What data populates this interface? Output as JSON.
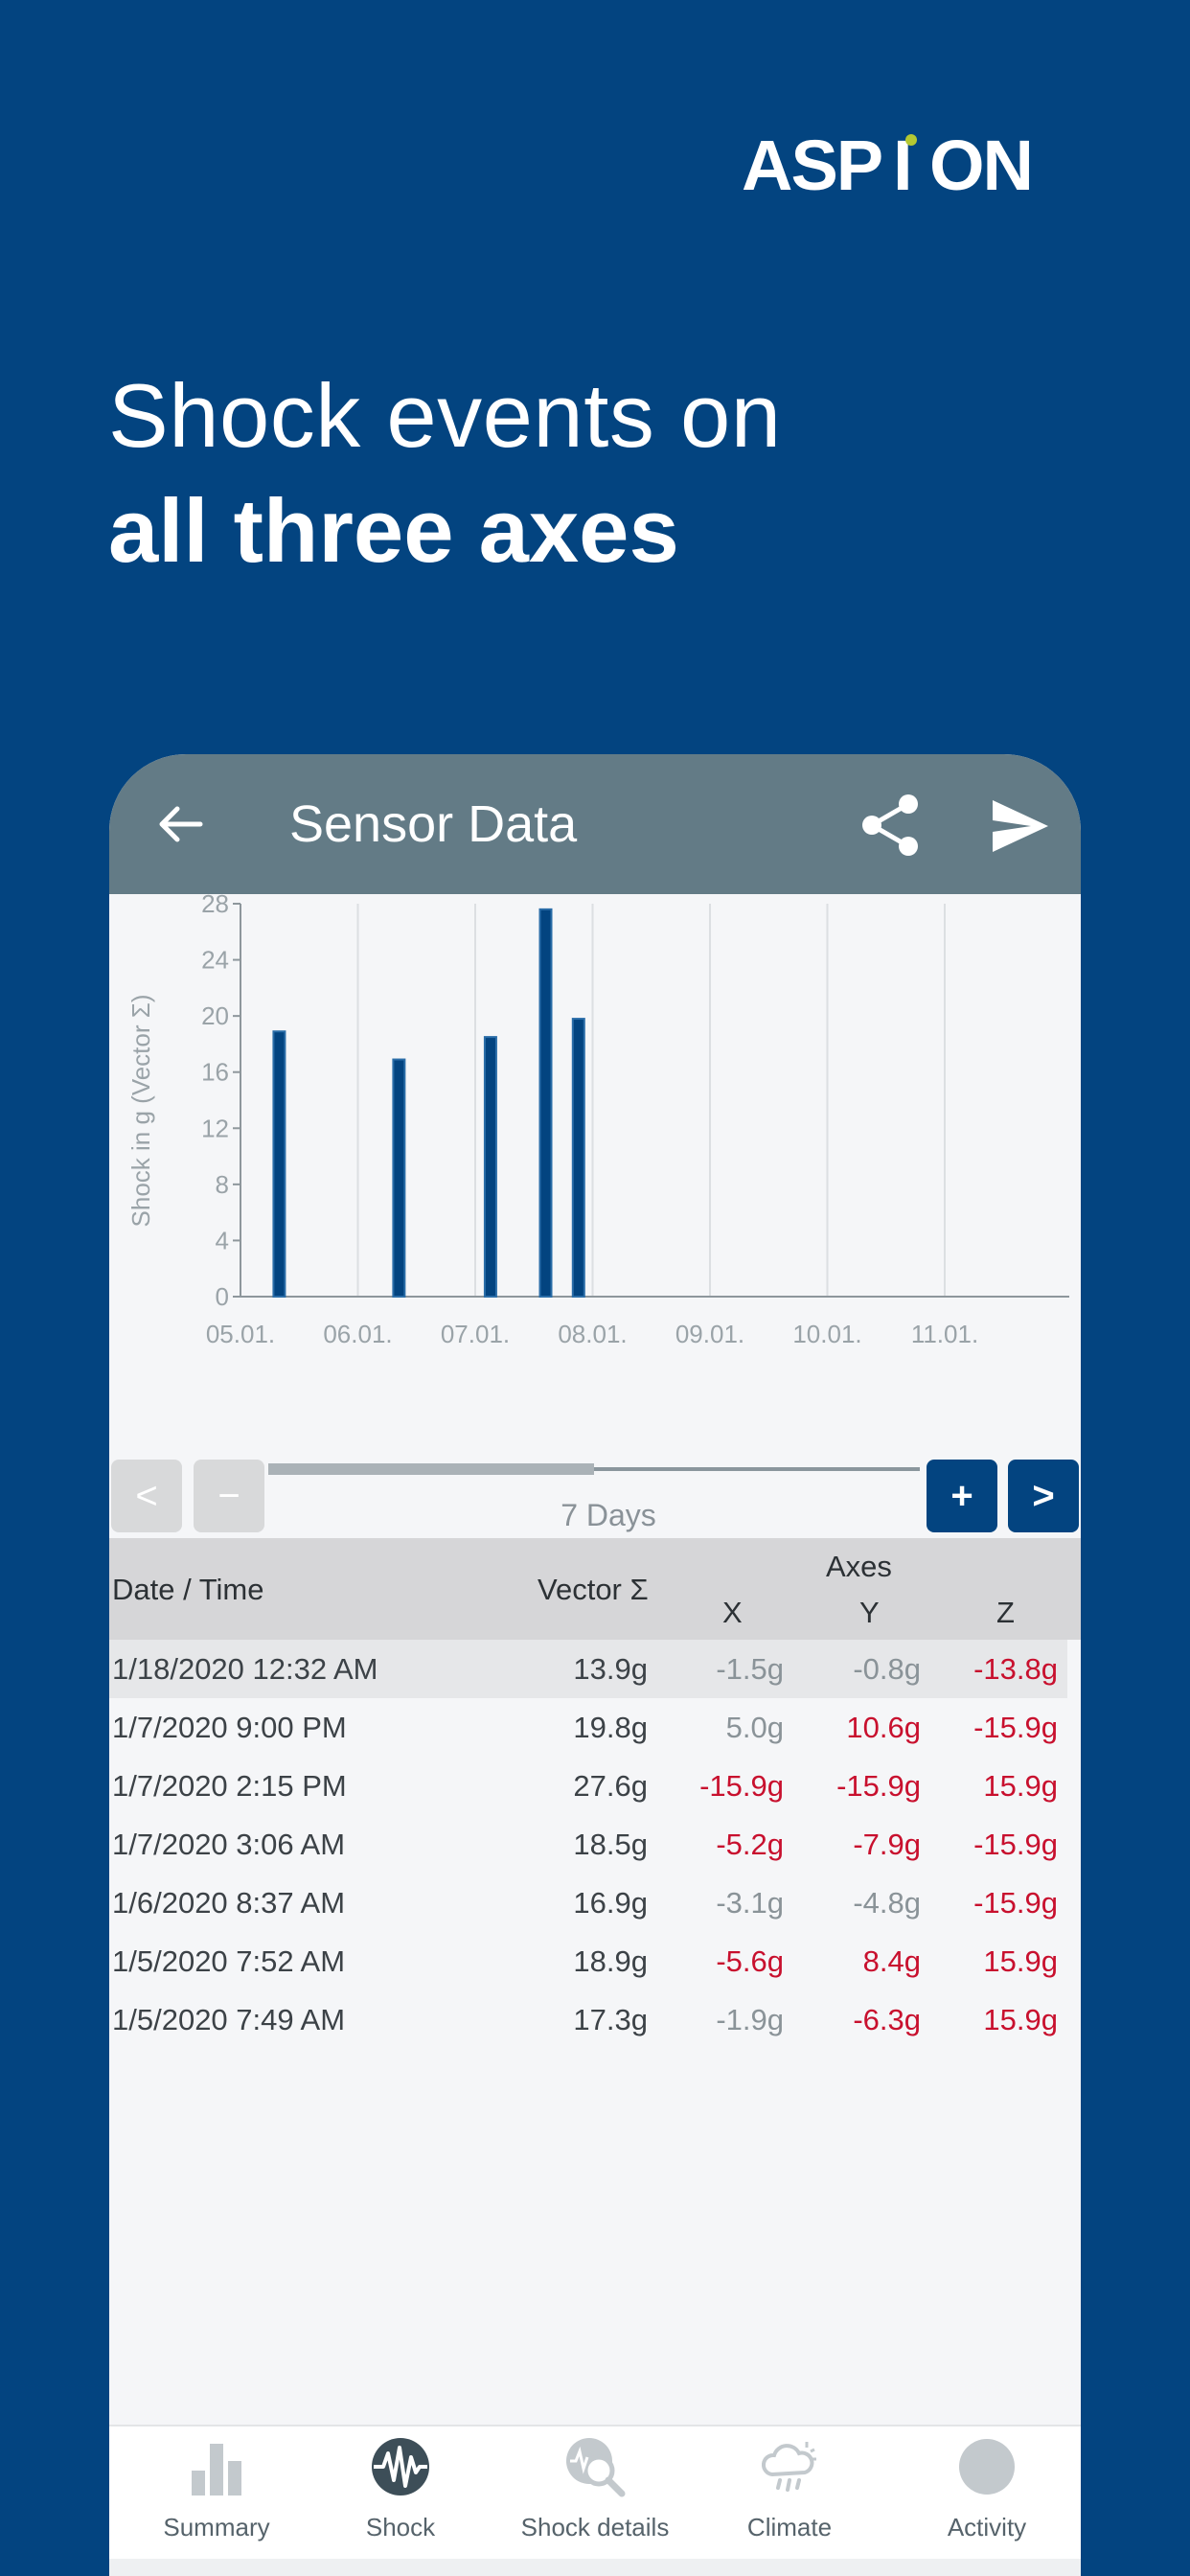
{
  "brand": {
    "logo_text": "ASPiON",
    "logo_color": "#ffffff",
    "logo_accent": "#b4c832"
  },
  "headline": {
    "line1": "Shock events on",
    "line2": "all three axes"
  },
  "appbar": {
    "title": "Sensor Data",
    "back_icon": "arrow-left-icon",
    "share_icon": "share-icon",
    "send_icon": "send-icon"
  },
  "chart_data": {
    "type": "bar",
    "ylabel": "Shock in g (Vector Σ)",
    "ylim": [
      0,
      28
    ],
    "yticks": [
      "0",
      "4",
      "8",
      "12",
      "16",
      "20",
      "24",
      "28"
    ],
    "x_tick_labels": [
      "05.01.",
      "06.01.",
      "07.01.",
      "08.01.",
      "09.01.",
      "10.01.",
      "11.01."
    ],
    "grid": true,
    "bar_color": "#034480",
    "bars": [
      {
        "x": 0.33,
        "value": 18.9
      },
      {
        "x": 1.35,
        "value": 16.9
      },
      {
        "x": 2.13,
        "value": 18.5
      },
      {
        "x": 2.6,
        "value": 27.6
      },
      {
        "x": 2.88,
        "value": 19.8
      }
    ]
  },
  "range_controls": {
    "prev_label": "<",
    "minus_label": "−",
    "plus_label": "+",
    "next_label": ">",
    "period_label": "7 Days",
    "window_fraction": 0.5
  },
  "table": {
    "headers": {
      "date": "Date / Time",
      "vector": "Vector Σ",
      "axes": "Axes",
      "x": "X",
      "y": "Y",
      "z": "Z"
    },
    "rows": [
      {
        "date": "1/18/2020 12:32 AM",
        "vector": "13.9g",
        "x": "-1.5g",
        "y": "-0.8g",
        "z": "-13.8g"
      },
      {
        "date": "1/7/2020 9:00 PM",
        "vector": "19.8g",
        "x": "5.0g",
        "y": "10.6g",
        "z": "-15.9g"
      },
      {
        "date": "1/7/2020 2:15 PM",
        "vector": "27.6g",
        "x": "-15.9g",
        "y": "-15.9g",
        "z": "15.9g"
      },
      {
        "date": "1/7/2020 3:06 AM",
        "vector": "18.5g",
        "x": "-5.2g",
        "y": "-7.9g",
        "z": "-15.9g"
      },
      {
        "date": "1/6/2020 8:37 AM",
        "vector": "16.9g",
        "x": "-3.1g",
        "y": "-4.8g",
        "z": "-15.9g"
      },
      {
        "date": "1/5/2020 7:52 AM",
        "vector": "18.9g",
        "x": "-5.6g",
        "y": "8.4g",
        "z": "15.9g"
      },
      {
        "date": "1/5/2020 7:49 AM",
        "vector": "17.3g",
        "x": "-1.9g",
        "y": "-6.3g",
        "z": "15.9g"
      }
    ],
    "alert_color": "#c8102e",
    "neutral_color": "#8a9398"
  },
  "tabs": [
    {
      "label": "Summary",
      "icon": "bar-chart-icon"
    },
    {
      "label": "Shock",
      "icon": "shock-wave-icon",
      "active": true
    },
    {
      "label": "Shock details",
      "icon": "shock-search-icon"
    },
    {
      "label": "Climate",
      "icon": "cloud-sun-rain-icon"
    },
    {
      "label": "Activity",
      "icon": "activity-dot-icon"
    }
  ]
}
